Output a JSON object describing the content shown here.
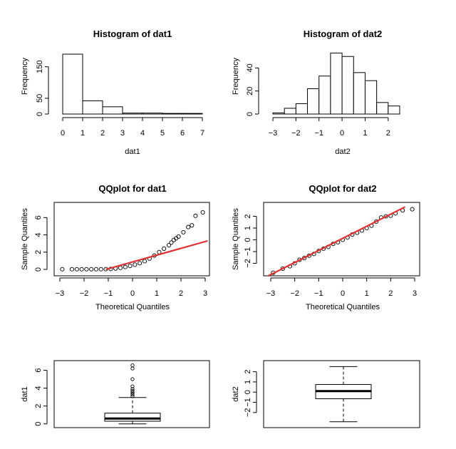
{
  "chart_data": [
    {
      "type": "bar",
      "title": "Histogram of dat1",
      "xlabel": "dat1",
      "ylabel": "Frequency",
      "xlim": [
        0,
        7
      ],
      "ylim": [
        0,
        190
      ],
      "x_ticks": [
        0,
        1,
        2,
        3,
        4,
        5,
        6,
        7
      ],
      "y_ticks": [
        0,
        50,
        150
      ],
      "bins": [
        [
          0,
          1,
          190
        ],
        [
          1,
          2,
          42
        ],
        [
          2,
          3,
          23
        ],
        [
          3,
          4,
          3
        ],
        [
          4,
          5,
          3
        ],
        [
          5,
          6,
          2
        ],
        [
          6,
          7,
          2
        ]
      ]
    },
    {
      "type": "bar",
      "title": "Histogram of dat2",
      "xlabel": "dat2",
      "ylabel": "Frequency",
      "xlim": [
        -3,
        2.5
      ],
      "ylim": [
        0,
        52
      ],
      "x_ticks": [
        -3,
        -2,
        -1,
        0,
        1,
        2
      ],
      "y_ticks": [
        0,
        20,
        40
      ],
      "bins": [
        [
          -3,
          -2.5,
          1
        ],
        [
          -2.5,
          -2,
          5
        ],
        [
          -2,
          -1.5,
          9
        ],
        [
          -1.5,
          -1,
          22
        ],
        [
          -1,
          -0.5,
          33
        ],
        [
          -0.5,
          0,
          53
        ],
        [
          0,
          0.5,
          50
        ],
        [
          0.5,
          1,
          36
        ],
        [
          1,
          1.5,
          29
        ],
        [
          1.5,
          2,
          10
        ],
        [
          2,
          2.5,
          7
        ]
      ]
    },
    {
      "type": "scatter",
      "title": "QQplot for dat1",
      "xlabel": "Theoretical Quantiles",
      "ylabel": "Sample Quantiles",
      "xlim": [
        -3,
        3
      ],
      "ylim": [
        0,
        6.6
      ],
      "x_ticks": [
        -3,
        -2,
        -1,
        0,
        1,
        2,
        3
      ],
      "y_ticks": [
        0,
        2,
        4,
        6
      ],
      "reference_line": [
        [
          -1.1,
          0
        ],
        [
          3.1,
          3.3
        ]
      ],
      "line_color": "#e03030",
      "points": [
        [
          -2.9,
          0.02
        ],
        [
          -2.5,
          0.02
        ],
        [
          -2.3,
          0.02
        ],
        [
          -2.1,
          0.02
        ],
        [
          -1.9,
          0.02
        ],
        [
          -1.7,
          0.02
        ],
        [
          -1.5,
          0.02
        ],
        [
          -1.3,
          0.02
        ],
        [
          -1.1,
          0.03
        ],
        [
          -0.9,
          0.05
        ],
        [
          -0.7,
          0.1
        ],
        [
          -0.5,
          0.18
        ],
        [
          -0.3,
          0.28
        ],
        [
          -0.1,
          0.4
        ],
        [
          0.1,
          0.55
        ],
        [
          0.3,
          0.72
        ],
        [
          0.5,
          0.95
        ],
        [
          0.7,
          1.25
        ],
        [
          0.9,
          1.6
        ],
        [
          1.1,
          2.0
        ],
        [
          1.3,
          2.4
        ],
        [
          1.5,
          2.8
        ],
        [
          1.6,
          3.1
        ],
        [
          1.7,
          3.4
        ],
        [
          1.8,
          3.6
        ],
        [
          1.9,
          3.8
        ],
        [
          2.1,
          4.3
        ],
        [
          2.3,
          4.9
        ],
        [
          2.45,
          5.1
        ],
        [
          2.6,
          6.2
        ],
        [
          2.9,
          6.6
        ]
      ]
    },
    {
      "type": "scatter",
      "title": "QQplot for dat2",
      "xlabel": "Theoretical Quantiles",
      "ylabel": "Sample Quantiles",
      "xlim": [
        -3,
        3
      ],
      "ylim": [
        -3,
        3
      ],
      "x_ticks": [
        -3,
        -2,
        -1,
        0,
        1,
        2,
        3
      ],
      "y_ticks": [
        -2,
        -1,
        0,
        1,
        2
      ],
      "reference_line": [
        [
          -3.1,
          -3.2
        ],
        [
          2.6,
          2.8
        ]
      ],
      "line_color": "#e03030",
      "points": [
        [
          -2.9,
          -2.8
        ],
        [
          -2.5,
          -2.45
        ],
        [
          -2.2,
          -2.25
        ],
        [
          -2.0,
          -2.0
        ],
        [
          -1.8,
          -1.7
        ],
        [
          -1.6,
          -1.55
        ],
        [
          -1.4,
          -1.35
        ],
        [
          -1.2,
          -1.2
        ],
        [
          -1.0,
          -0.95
        ],
        [
          -0.8,
          -0.75
        ],
        [
          -0.6,
          -0.6
        ],
        [
          -0.4,
          -0.35
        ],
        [
          -0.2,
          -0.2
        ],
        [
          0.0,
          0.0
        ],
        [
          0.2,
          0.2
        ],
        [
          0.4,
          0.45
        ],
        [
          0.6,
          0.6
        ],
        [
          0.8,
          0.8
        ],
        [
          1.0,
          1.0
        ],
        [
          1.2,
          1.2
        ],
        [
          1.4,
          1.55
        ],
        [
          1.6,
          1.9
        ],
        [
          1.8,
          2.0
        ],
        [
          2.0,
          2.05
        ],
        [
          2.2,
          2.25
        ],
        [
          2.5,
          2.5
        ],
        [
          2.9,
          2.6
        ]
      ]
    },
    {
      "type": "box",
      "ylabel": "dat1",
      "ylim": [
        -0.1,
        6.6
      ],
      "y_ticks": [
        0,
        2,
        4,
        6
      ],
      "whisker_low": 0.0,
      "q1": 0.3,
      "median": 0.6,
      "q3": 1.2,
      "whisker_high": 2.95,
      "outliers": [
        3.1,
        3.3,
        3.5,
        3.7,
        3.9,
        4.2,
        5.0,
        6.2,
        6.55
      ]
    },
    {
      "type": "box",
      "ylabel": "dat2",
      "ylim": [
        -3.2,
        2.6
      ],
      "y_ticks": [
        -2,
        -1,
        0,
        1,
        2
      ],
      "whisker_low": -2.9,
      "q1": -0.65,
      "median": 0.1,
      "q3": 0.75,
      "whisker_high": 2.5,
      "outliers": []
    }
  ]
}
